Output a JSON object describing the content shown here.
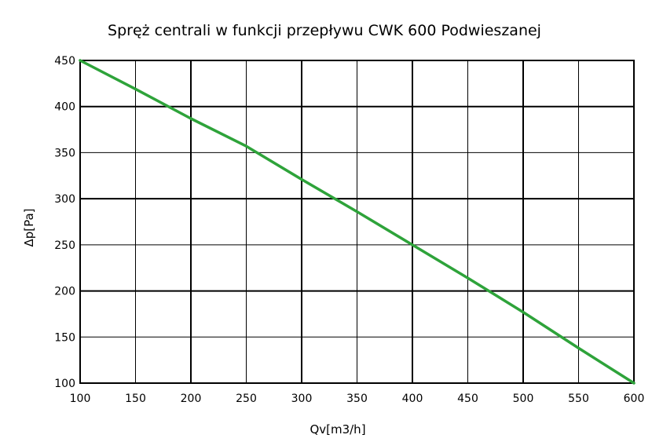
{
  "chart_data": {
    "type": "line",
    "title": "Spręż centrali w funkcji przepływu  CWK 600 Podwieszanej",
    "xlabel": "Qv[m3/h]",
    "ylabel": "Δp[Pa]",
    "xlim": [
      100,
      600
    ],
    "ylim": [
      100,
      450
    ],
    "xticks": [
      "100",
      "150",
      "200",
      "250",
      "300",
      "350",
      "400",
      "450",
      "500",
      "550",
      "600"
    ],
    "yticks": [
      "100",
      "150",
      "200",
      "250",
      "300",
      "350",
      "400",
      "450"
    ],
    "grid": true,
    "legend": "none",
    "series": [
      {
        "color": "#2ea33a",
        "x": [
          100,
          150,
          200,
          250,
          300,
          350,
          400,
          450,
          500,
          550,
          600
        ],
        "y": [
          450,
          419,
          387,
          357,
          321,
          286,
          250,
          214,
          177,
          138,
          100
        ]
      }
    ]
  }
}
